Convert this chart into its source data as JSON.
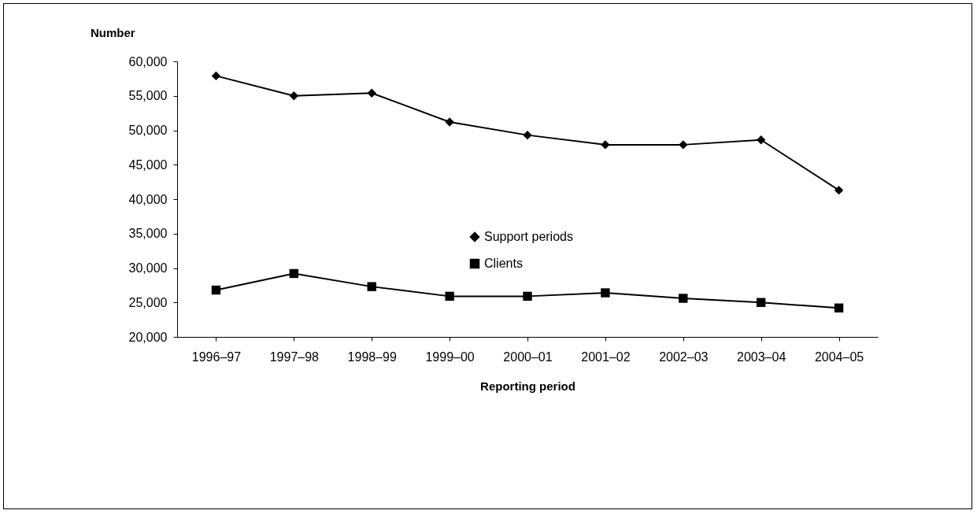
{
  "chart_data": {
    "type": "line",
    "ylabel": "Number",
    "xlabel": "Reporting period",
    "categories": [
      "1996–97",
      "1997–98",
      "1998–99",
      "1999–00",
      "2000–01",
      "2001–02",
      "2002–03",
      "2003–04",
      "2004–05"
    ],
    "series": [
      {
        "name": "Support periods",
        "color": "#000000",
        "marker": "diamond",
        "values": [
          57900,
          55000,
          55400,
          51200,
          49300,
          47900,
          47900,
          48600,
          41300
        ]
      },
      {
        "name": "Clients",
        "color": "#000000",
        "marker": "square",
        "values": [
          26800,
          29200,
          27300,
          25900,
          25900,
          26400,
          25600,
          25000,
          24200
        ]
      }
    ],
    "ylim": [
      20000,
      60000
    ],
    "yticks": [
      {
        "value": 20000,
        "label": "20,000"
      },
      {
        "value": 25000,
        "label": "25,000"
      },
      {
        "value": 30000,
        "label": "30,000"
      },
      {
        "value": 35000,
        "label": "35,000"
      },
      {
        "value": 40000,
        "label": "40,000"
      },
      {
        "value": 45000,
        "label": "45,000"
      },
      {
        "value": 50000,
        "label": "50,000"
      },
      {
        "value": 55000,
        "label": "55,000"
      },
      {
        "value": 60000,
        "label": "60,000"
      }
    ],
    "grid": false,
    "legend": "center",
    "line_style": "solid"
  }
}
